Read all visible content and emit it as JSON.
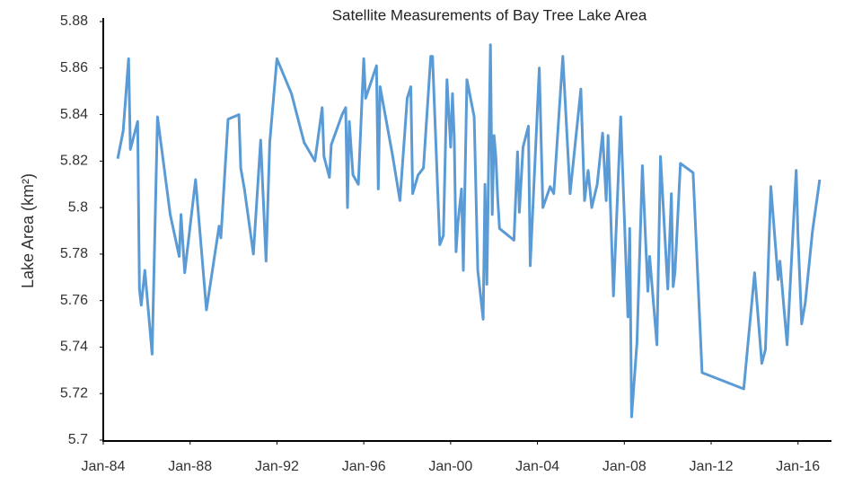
{
  "chart_data": {
    "type": "line",
    "title": "Satellite Measurements of Bay Tree Lake Area",
    "y_label": "Lake Area (km²)",
    "x": [
      "1984-09",
      "1984-12",
      "1985-03",
      "1985-04",
      "1985-08",
      "1985-09",
      "1985-10",
      "1985-12",
      "1986-04",
      "1986-07",
      "1987-02",
      "1987-07",
      "1987-08",
      "1987-10",
      "1988-04",
      "1988-10",
      "1989-05",
      "1989-06",
      "1989-10",
      "1990-04",
      "1990-05",
      "1990-07",
      "1990-12",
      "1991-04",
      "1991-07",
      "1991-09",
      "1992-01",
      "1992-09",
      "1993-04",
      "1993-10",
      "1994-02",
      "1994-03",
      "1994-06",
      "1994-07",
      "1995-01",
      "1995-03",
      "1995-04",
      "1995-05",
      "1995-07",
      "1995-10",
      "1996-01",
      "1996-02",
      "1996-08",
      "1996-09",
      "1996-10",
      "1997-05",
      "1997-09",
      "1998-01",
      "1998-03",
      "1998-04",
      "1998-07",
      "1998-10",
      "1999-02",
      "1999-03",
      "1999-07",
      "1999-09",
      "1999-11",
      "2000-01",
      "2000-02",
      "2000-03",
      "2000-04",
      "2000-05",
      "2000-07",
      "2000-08",
      "2000-10",
      "2001-02",
      "2001-04",
      "2001-07",
      "2001-08",
      "2001-09",
      "2001-11",
      "2001-12",
      "2002-01",
      "2002-02",
      "2002-03",
      "2002-04",
      "2002-12",
      "2003-02",
      "2003-03",
      "2003-05",
      "2003-08",
      "2003-09",
      "2004-02",
      "2004-04",
      "2004-08",
      "2004-10",
      "2005-03",
      "2005-07",
      "2006-01",
      "2006-03",
      "2006-05",
      "2006-07",
      "2006-10",
      "2007-01",
      "2007-03",
      "2007-04",
      "2007-07",
      "2007-11",
      "2008-03",
      "2008-04",
      "2008-05",
      "2008-08",
      "2008-11",
      "2009-02",
      "2009-03",
      "2009-07",
      "2009-09",
      "2010-01",
      "2010-03",
      "2010-04",
      "2010-05",
      "2010-08",
      "2011-03",
      "2011-08",
      "2013-07",
      "2014-01",
      "2014-05",
      "2014-07",
      "2014-10",
      "2015-02",
      "2015-03",
      "2015-07",
      "2015-12",
      "2016-01",
      "2016-03",
      "2016-05",
      "2016-09",
      "2017-01"
    ],
    "series": [
      {
        "name": "Lake Area",
        "color": "#5b9bd5",
        "values": [
          5.821,
          5.833,
          5.864,
          5.825,
          5.837,
          5.765,
          5.758,
          5.773,
          5.737,
          5.839,
          5.797,
          5.779,
          5.797,
          5.772,
          5.812,
          5.756,
          5.792,
          5.787,
          5.838,
          5.84,
          5.817,
          5.808,
          5.78,
          5.829,
          5.777,
          5.828,
          5.864,
          5.849,
          5.828,
          5.82,
          5.843,
          5.822,
          5.813,
          5.827,
          5.84,
          5.843,
          5.8,
          5.837,
          5.814,
          5.81,
          5.864,
          5.847,
          5.861,
          5.808,
          5.852,
          5.822,
          5.803,
          5.847,
          5.852,
          5.806,
          5.814,
          5.817,
          5.865,
          5.865,
          5.784,
          5.788,
          5.855,
          5.826,
          5.849,
          5.83,
          5.781,
          5.793,
          5.808,
          5.773,
          5.855,
          5.839,
          5.773,
          5.752,
          5.81,
          5.767,
          5.87,
          5.797,
          5.831,
          5.822,
          5.804,
          5.791,
          5.786,
          5.824,
          5.798,
          5.826,
          5.835,
          5.775,
          5.86,
          5.8,
          5.809,
          5.806,
          5.865,
          5.806,
          5.851,
          5.803,
          5.816,
          5.8,
          5.81,
          5.832,
          5.803,
          5.831,
          5.762,
          5.839,
          5.753,
          5.791,
          5.71,
          5.742,
          5.818,
          5.764,
          5.779,
          5.741,
          5.822,
          5.765,
          5.806,
          5.766,
          5.772,
          5.819,
          5.815,
          5.729,
          5.722,
          5.772,
          5.733,
          5.739,
          5.809,
          5.769,
          5.777,
          5.741,
          5.816,
          5.788,
          5.75,
          5.759,
          5.79,
          5.812
        ]
      }
    ],
    "xlim": [
      "1984-01",
      "2017-07"
    ],
    "xticks": [
      {
        "value": "1984-01",
        "label": "Jan-84"
      },
      {
        "value": "1988-01",
        "label": "Jan-88"
      },
      {
        "value": "1992-01",
        "label": "Jan-92"
      },
      {
        "value": "1996-01",
        "label": "Jan-96"
      },
      {
        "value": "2000-01",
        "label": "Jan-00"
      },
      {
        "value": "2004-01",
        "label": "Jan-04"
      },
      {
        "value": "2008-01",
        "label": "Jan-08"
      },
      {
        "value": "2012-01",
        "label": "Jan-12"
      },
      {
        "value": "2016-01",
        "label": "Jan-16"
      }
    ],
    "ylim": [
      5.7,
      5.88
    ],
    "yticks": [
      5.7,
      5.72,
      5.74,
      5.76,
      5.78,
      5.8,
      5.82,
      5.84,
      5.86,
      5.88
    ],
    "grid": false
  }
}
